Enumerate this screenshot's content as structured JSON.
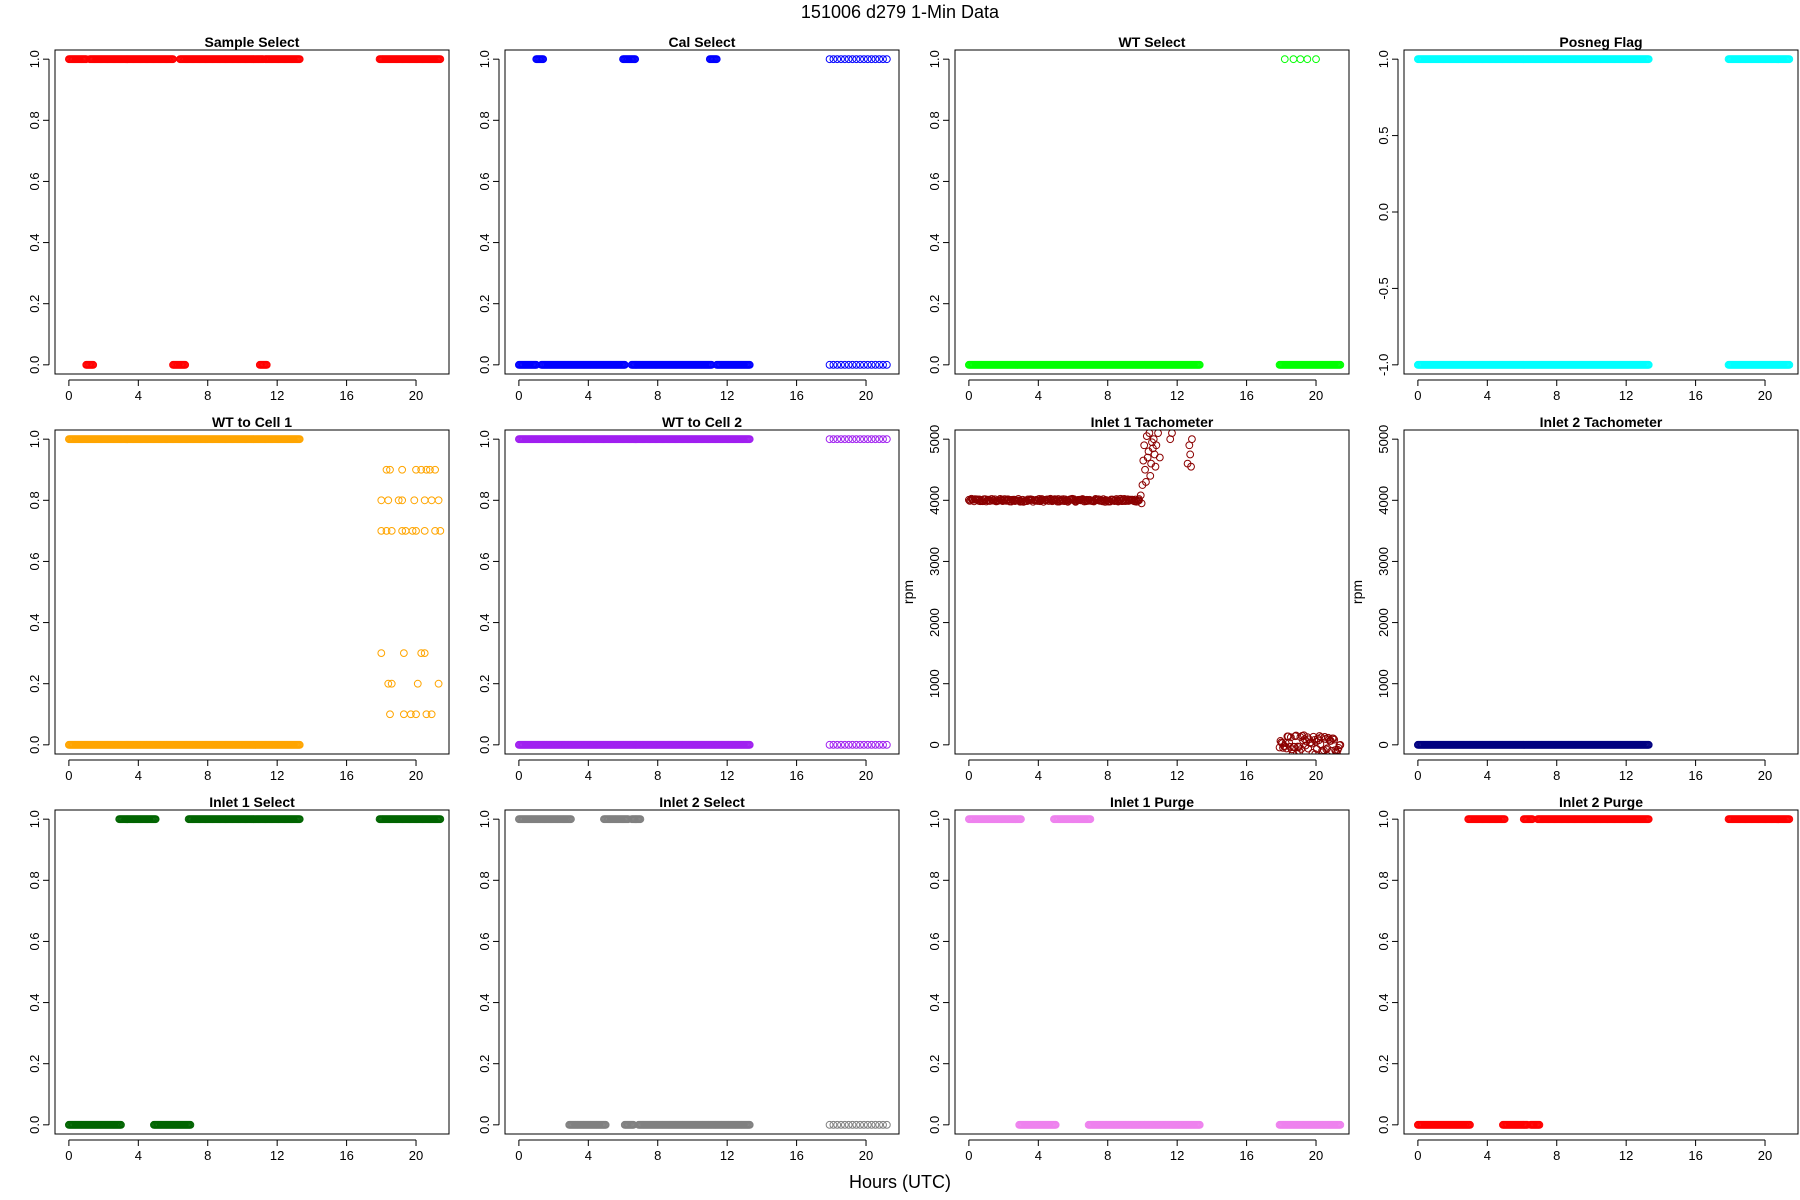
{
  "figure": {
    "title": "151006   d279   1-Min Data",
    "xlabel": "Hours (UTC)"
  },
  "chart_data": [
    {
      "type": "scatter",
      "title": "Sample Select",
      "ylabel": "",
      "color": "#ff0000",
      "xlim": [
        -0.8,
        21.9
      ],
      "xticks": [
        0,
        4,
        8,
        12,
        16,
        20
      ],
      "ylim": [
        -0.03,
        1.03
      ],
      "yticks": [
        0.0,
        0.2,
        0.4,
        0.6,
        0.8,
        1.0
      ],
      "ytick_labels": [
        "0.0",
        "0.2",
        "0.4",
        "0.6",
        "0.8",
        "1.0"
      ],
      "series": [
        {
          "x_range": [
            0,
            1.0
          ],
          "y": 1
        },
        {
          "x_range": [
            1.0,
            1.4
          ],
          "y": 0
        },
        {
          "x_range": [
            1.2,
            6.0
          ],
          "y": 1
        },
        {
          "x_range": [
            6.0,
            6.7
          ],
          "y": 0
        },
        {
          "x_range": [
            6.4,
            11.2
          ],
          "y": 1
        },
        {
          "x_range": [
            11.0,
            11.4
          ],
          "y": 0
        },
        {
          "x_range": [
            11.3,
            13.3
          ],
          "y": 1
        },
        {
          "x_range": [
            17.9,
            21.4
          ],
          "y": 1
        }
      ]
    },
    {
      "type": "scatter",
      "title": "Cal Select",
      "ylabel": "",
      "color": "#0000ff",
      "xlim": [
        -0.8,
        21.9
      ],
      "xticks": [
        0,
        4,
        8,
        12,
        16,
        20
      ],
      "ylim": [
        -0.03,
        1.03
      ],
      "yticks": [
        0.0,
        0.2,
        0.4,
        0.6,
        0.8,
        1.0
      ],
      "ytick_labels": [
        "0.0",
        "0.2",
        "0.4",
        "0.6",
        "0.8",
        "1.0"
      ],
      "series": [
        {
          "x_range": [
            0,
            1.0
          ],
          "y": 0
        },
        {
          "x_range": [
            1.0,
            1.4
          ],
          "y": 1
        },
        {
          "x_range": [
            1.3,
            6.1
          ],
          "y": 0
        },
        {
          "x_range": [
            6.0,
            6.7
          ],
          "y": 1
        },
        {
          "x_range": [
            6.5,
            11.1
          ],
          "y": 0
        },
        {
          "x_range": [
            11.0,
            11.4
          ],
          "y": 1
        },
        {
          "x_range": [
            11.4,
            13.3
          ],
          "y": 0
        },
        {
          "x_range": [
            17.9,
            21.4
          ],
          "y": 1,
          "sparse": true
        },
        {
          "x_range": [
            17.9,
            21.4
          ],
          "y": 0,
          "sparse": true
        }
      ]
    },
    {
      "type": "scatter",
      "title": "WT Select",
      "ylabel": "",
      "color": "#00ff00",
      "xlim": [
        -0.8,
        21.9
      ],
      "xticks": [
        0,
        4,
        8,
        12,
        16,
        20
      ],
      "ylim": [
        -0.03,
        1.03
      ],
      "yticks": [
        0.0,
        0.2,
        0.4,
        0.6,
        0.8,
        1.0
      ],
      "ytick_labels": [
        "0.0",
        "0.2",
        "0.4",
        "0.6",
        "0.8",
        "1.0"
      ],
      "series": [
        {
          "x_range": [
            0,
            13.3
          ],
          "y": 0
        },
        {
          "x_range": [
            17.9,
            21.4
          ],
          "y": 0
        },
        {
          "points": [
            [
              18.2,
              1
            ],
            [
              18.7,
              1
            ],
            [
              19.1,
              1
            ],
            [
              19.5,
              1
            ],
            [
              20.0,
              1
            ]
          ]
        }
      ]
    },
    {
      "type": "scatter",
      "title": "Posneg Flag",
      "ylabel": "",
      "color": "#00ffff",
      "xlim": [
        -0.8,
        21.9
      ],
      "xticks": [
        0,
        4,
        8,
        12,
        16,
        20
      ],
      "ylim": [
        -1.06,
        1.06
      ],
      "yticks": [
        -1.0,
        -0.5,
        0.0,
        0.5,
        1.0
      ],
      "ytick_labels": [
        "-1.0",
        "-0.5",
        "0.0",
        "0.5",
        "1.0"
      ],
      "series": [
        {
          "x_range": [
            0,
            13.3
          ],
          "y": 1
        },
        {
          "x_range": [
            0,
            13.3
          ],
          "y": -1
        },
        {
          "x_range": [
            17.9,
            21.4
          ],
          "y": 1
        },
        {
          "x_range": [
            17.9,
            21.4
          ],
          "y": -1
        }
      ]
    },
    {
      "type": "scatter",
      "title": "WT to Cell 1",
      "ylabel": "",
      "color": "#ffa500",
      "xlim": [
        -0.8,
        21.9
      ],
      "xticks": [
        0,
        4,
        8,
        12,
        16,
        20
      ],
      "ylim": [
        -0.03,
        1.03
      ],
      "yticks": [
        0.0,
        0.2,
        0.4,
        0.6,
        0.8,
        1.0
      ],
      "ytick_labels": [
        "0.0",
        "0.2",
        "0.4",
        "0.6",
        "0.8",
        "1.0"
      ],
      "series": [
        {
          "x_range": [
            0,
            13.3
          ],
          "y": 1
        },
        {
          "x_range": [
            0,
            13.3
          ],
          "y": 0
        },
        {
          "points": [
            [
              18.3,
              0.9
            ],
            [
              18.5,
              0.9
            ],
            [
              19.2,
              0.9
            ],
            [
              20.0,
              0.9
            ],
            [
              20.3,
              0.9
            ],
            [
              20.6,
              0.9
            ],
            [
              20.8,
              0.9
            ],
            [
              21.1,
              0.9
            ],
            [
              18.0,
              0.8
            ],
            [
              18.4,
              0.8
            ],
            [
              19.0,
              0.8
            ],
            [
              19.2,
              0.8
            ],
            [
              19.9,
              0.8
            ],
            [
              20.5,
              0.8
            ],
            [
              20.9,
              0.8
            ],
            [
              21.3,
              0.8
            ],
            [
              18.0,
              0.7
            ],
            [
              18.3,
              0.7
            ],
            [
              18.6,
              0.7
            ],
            [
              19.2,
              0.7
            ],
            [
              19.4,
              0.7
            ],
            [
              19.8,
              0.7
            ],
            [
              20.0,
              0.7
            ],
            [
              20.5,
              0.7
            ],
            [
              21.1,
              0.7
            ],
            [
              21.4,
              0.7
            ],
            [
              18.0,
              0.3
            ],
            [
              19.3,
              0.3
            ],
            [
              20.3,
              0.3
            ],
            [
              20.5,
              0.3
            ],
            [
              18.4,
              0.2
            ],
            [
              18.6,
              0.2
            ],
            [
              20.1,
              0.2
            ],
            [
              21.3,
              0.2
            ],
            [
              18.5,
              0.1
            ],
            [
              19.3,
              0.1
            ],
            [
              19.7,
              0.1
            ],
            [
              20.0,
              0.1
            ],
            [
              20.6,
              0.1
            ],
            [
              20.9,
              0.1
            ]
          ]
        }
      ]
    },
    {
      "type": "scatter",
      "title": "WT to Cell 2",
      "ylabel": "",
      "color": "#a020f0",
      "xlim": [
        -0.8,
        21.9
      ],
      "xticks": [
        0,
        4,
        8,
        12,
        16,
        20
      ],
      "ylim": [
        -0.03,
        1.03
      ],
      "yticks": [
        0.0,
        0.2,
        0.4,
        0.6,
        0.8,
        1.0
      ],
      "ytick_labels": [
        "0.0",
        "0.2",
        "0.4",
        "0.6",
        "0.8",
        "1.0"
      ],
      "series": [
        {
          "x_range": [
            0,
            13.3
          ],
          "y": 1
        },
        {
          "x_range": [
            0,
            13.3
          ],
          "y": 0
        },
        {
          "x_range": [
            17.9,
            21.4
          ],
          "y": 1,
          "sparse": true
        },
        {
          "x_range": [
            17.9,
            21.4
          ],
          "y": 0,
          "sparse": true
        }
      ]
    },
    {
      "type": "scatter",
      "title": "Inlet 1 Tachometer",
      "ylabel": "rpm",
      "color": "#8b0000",
      "xlim": [
        -0.8,
        21.9
      ],
      "xticks": [
        0,
        4,
        8,
        12,
        16,
        20
      ],
      "ylim": [
        -150,
        5150
      ],
      "yticks": [
        0,
        1000,
        2000,
        3000,
        4000,
        5000
      ],
      "ytick_labels": [
        "0",
        "1000",
        "2000",
        "3000",
        "4000",
        "5000"
      ],
      "series": [
        {
          "x_range": [
            0,
            9.8
          ],
          "y": 4000,
          "jitter": 25
        },
        {
          "points": [
            [
              9.8,
              4020
            ],
            [
              9.9,
              4080
            ],
            [
              9.95,
              3950
            ],
            [
              10.0,
              4250
            ],
            [
              10.05,
              4650
            ],
            [
              10.1,
              4900
            ],
            [
              10.15,
              4500
            ],
            [
              10.2,
              4300
            ],
            [
              10.25,
              5050
            ],
            [
              10.3,
              4700
            ],
            [
              10.35,
              4800
            ],
            [
              10.4,
              5100
            ],
            [
              10.45,
              4400
            ],
            [
              10.5,
              4600
            ],
            [
              10.55,
              4950
            ],
            [
              10.6,
              4850
            ],
            [
              10.65,
              5000
            ],
            [
              10.7,
              4750
            ],
            [
              10.75,
              4550
            ],
            [
              10.8,
              4900
            ],
            [
              10.9,
              5100
            ],
            [
              11.0,
              4700
            ],
            [
              11.6,
              5000
            ],
            [
              11.7,
              5100
            ],
            [
              12.6,
              4600
            ],
            [
              12.7,
              4900
            ],
            [
              12.75,
              4750
            ],
            [
              12.8,
              4550
            ],
            [
              12.85,
              5000
            ]
          ]
        },
        {
          "x_range": [
            17.9,
            21.4
          ],
          "y": 0,
          "jitter": 160
        }
      ]
    },
    {
      "type": "scatter",
      "title": "Inlet 2 Tachometer",
      "ylabel": "rpm",
      "color": "#000080",
      "xlim": [
        -0.8,
        21.9
      ],
      "xticks": [
        0,
        4,
        8,
        12,
        16,
        20
      ],
      "ylim": [
        -150,
        5150
      ],
      "yticks": [
        0,
        1000,
        2000,
        3000,
        4000,
        5000
      ],
      "ytick_labels": [
        "0",
        "1000",
        "2000",
        "3000",
        "4000",
        "5000"
      ],
      "series": [
        {
          "x_range": [
            0,
            13.3
          ],
          "y": 0
        }
      ]
    },
    {
      "type": "scatter",
      "title": "Inlet 1 Select",
      "ylabel": "",
      "color": "#006400",
      "xlim": [
        -0.8,
        21.9
      ],
      "xticks": [
        0,
        4,
        8,
        12,
        16,
        20
      ],
      "ylim": [
        -0.03,
        1.03
      ],
      "yticks": [
        0.0,
        0.2,
        0.4,
        0.6,
        0.8,
        1.0
      ],
      "ytick_labels": [
        "0.0",
        "0.2",
        "0.4",
        "0.6",
        "0.8",
        "1.0"
      ],
      "series": [
        {
          "x_range": [
            0,
            3.0
          ],
          "y": 0
        },
        {
          "x_range": [
            2.9,
            5.0
          ],
          "y": 1
        },
        {
          "x_range": [
            4.9,
            7.0
          ],
          "y": 0
        },
        {
          "x_range": [
            6.9,
            13.3
          ],
          "y": 1
        },
        {
          "x_range": [
            17.9,
            21.4
          ],
          "y": 1
        }
      ]
    },
    {
      "type": "scatter",
      "title": "Inlet 2 Select",
      "ylabel": "",
      "color": "#808080",
      "xlim": [
        -0.8,
        21.9
      ],
      "xticks": [
        0,
        4,
        8,
        12,
        16,
        20
      ],
      "ylim": [
        -0.03,
        1.03
      ],
      "yticks": [
        0.0,
        0.2,
        0.4,
        0.6,
        0.8,
        1.0
      ],
      "ytick_labels": [
        "0.0",
        "0.2",
        "0.4",
        "0.6",
        "0.8",
        "1.0"
      ],
      "series": [
        {
          "x_range": [
            0,
            3.0
          ],
          "y": 1
        },
        {
          "x_range": [
            2.9,
            5.0
          ],
          "y": 0
        },
        {
          "x_range": [
            4.9,
            6.3
          ],
          "y": 1
        },
        {
          "x_range": [
            6.5,
            7.0
          ],
          "y": 1
        },
        {
          "x_range": [
            6.1,
            6.6
          ],
          "y": 0
        },
        {
          "x_range": [
            6.9,
            13.3
          ],
          "y": 0
        },
        {
          "x_range": [
            17.9,
            21.4
          ],
          "y": 0,
          "sparse": true
        }
      ]
    },
    {
      "type": "scatter",
      "title": "Inlet 1 Purge",
      "ylabel": "",
      "color": "#ee82ee",
      "xlim": [
        -0.8,
        21.9
      ],
      "xticks": [
        0,
        4,
        8,
        12,
        16,
        20
      ],
      "ylim": [
        -0.03,
        1.03
      ],
      "yticks": [
        0.0,
        0.2,
        0.4,
        0.6,
        0.8,
        1.0
      ],
      "ytick_labels": [
        "0.0",
        "0.2",
        "0.4",
        "0.6",
        "0.8",
        "1.0"
      ],
      "series": [
        {
          "x_range": [
            0,
            3.0
          ],
          "y": 1
        },
        {
          "x_range": [
            2.9,
            5.0
          ],
          "y": 0
        },
        {
          "x_range": [
            4.9,
            7.0
          ],
          "y": 1
        },
        {
          "x_range": [
            6.9,
            13.3
          ],
          "y": 0
        },
        {
          "x_range": [
            17.9,
            21.4
          ],
          "y": 0
        }
      ]
    },
    {
      "type": "scatter",
      "title": "Inlet 2 Purge",
      "ylabel": "",
      "color": "#ff0000",
      "xlim": [
        -0.8,
        21.9
      ],
      "xticks": [
        0,
        4,
        8,
        12,
        16,
        20
      ],
      "ylim": [
        -0.03,
        1.03
      ],
      "yticks": [
        0.0,
        0.2,
        0.4,
        0.6,
        0.8,
        1.0
      ],
      "ytick_labels": [
        "0.0",
        "0.2",
        "0.4",
        "0.6",
        "0.8",
        "1.0"
      ],
      "series": [
        {
          "x_range": [
            0,
            3.0
          ],
          "y": 0
        },
        {
          "x_range": [
            2.9,
            5.0
          ],
          "y": 1
        },
        {
          "x_range": [
            4.9,
            6.3
          ],
          "y": 0
        },
        {
          "x_range": [
            6.1,
            6.6
          ],
          "y": 1
        },
        {
          "x_range": [
            6.5,
            7.0
          ],
          "y": 0
        },
        {
          "x_range": [
            6.9,
            13.3
          ],
          "y": 1
        },
        {
          "x_range": [
            17.9,
            21.4
          ],
          "y": 1
        }
      ]
    }
  ]
}
